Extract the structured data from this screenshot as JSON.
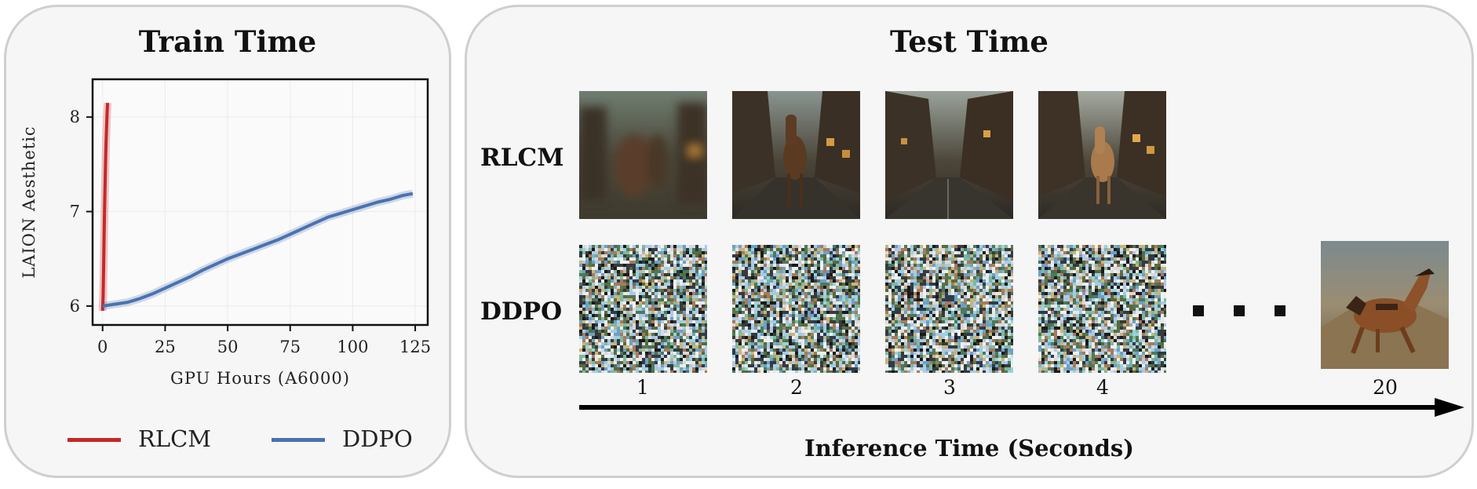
{
  "train_panel": {
    "title": "Train Time"
  },
  "chart_data": {
    "type": "line",
    "xlabel": "GPU Hours (A6000)",
    "ylabel": "LAION Aesthetic",
    "xlim": [
      -4,
      130
    ],
    "ylim": [
      5.8,
      8.4
    ],
    "xticks": [
      0,
      25,
      50,
      75,
      100,
      125
    ],
    "yticks": [
      6,
      7,
      8
    ],
    "grid": true,
    "legend_position": "bottom",
    "series": [
      {
        "name": "RLCM",
        "color": "#c62828",
        "x": [
          0,
          0.2,
          0.4,
          0.6,
          0.8,
          1.0,
          1.2,
          1.4,
          1.6,
          1.8,
          2.0
        ],
        "y": [
          5.95,
          6.1,
          6.4,
          6.75,
          7.05,
          7.3,
          7.55,
          7.75,
          7.9,
          8.05,
          8.15
        ]
      },
      {
        "name": "DDPO",
        "color": "#4a72b0",
        "x": [
          0,
          5,
          10,
          15,
          20,
          25,
          30,
          35,
          40,
          45,
          50,
          55,
          60,
          65,
          70,
          75,
          80,
          85,
          90,
          95,
          100,
          105,
          110,
          115,
          120,
          124
        ],
        "y": [
          6.0,
          6.02,
          6.04,
          6.08,
          6.13,
          6.19,
          6.25,
          6.31,
          6.38,
          6.44,
          6.5,
          6.55,
          6.6,
          6.65,
          6.7,
          6.76,
          6.82,
          6.88,
          6.94,
          6.98,
          7.02,
          7.06,
          7.1,
          7.13,
          7.17,
          7.19
        ]
      }
    ]
  },
  "test_panel": {
    "title": "Test Time",
    "rows": [
      "RLCM",
      "DDPO"
    ],
    "time_labels": [
      "1",
      "2",
      "3",
      "4",
      "20"
    ],
    "axis_label": "Inference Time (Seconds)"
  }
}
